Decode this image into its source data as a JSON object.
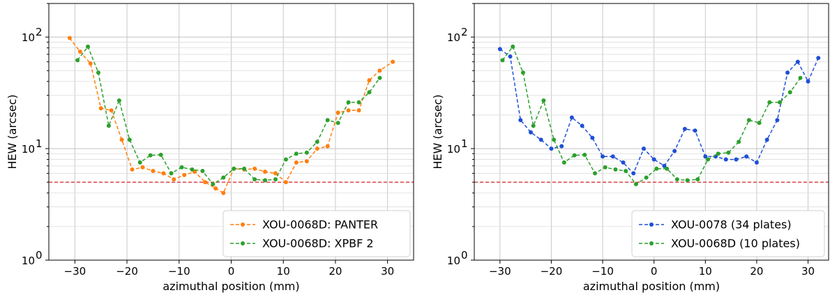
{
  "chart_data": [
    {
      "type": "line",
      "title": "",
      "xlabel": "azimuthal position (mm)",
      "ylabel": "HEW (arcsec)",
      "xlim": [
        -35,
        35
      ],
      "ylim": [
        1,
        200
      ],
      "yscale": "log",
      "xticks": [
        -30,
        -20,
        -10,
        0,
        10,
        20,
        30
      ],
      "xtick_labels": [
        "−30",
        "−20",
        "−10",
        "0",
        "10",
        "20",
        "30"
      ],
      "yticks": [
        1,
        10,
        100
      ],
      "ytick_labels": [
        "10",
        "10",
        "10"
      ],
      "ytick_exponents": [
        "0",
        "1",
        "2"
      ],
      "grid": true,
      "legend_position": "lower-right",
      "reference_line": {
        "y": 5,
        "color": "#d62728",
        "style": "dashed"
      },
      "series": [
        {
          "name": "XOU-0068D: PANTER",
          "color": "#ff7f0e",
          "x": [
            -31,
            -29,
            -27,
            -25,
            -23,
            -21,
            -19,
            -17,
            -15,
            -13,
            -11,
            -9,
            -7,
            -5,
            -3,
            -1.5,
            0.5,
            2.5,
            4.5,
            6.5,
            8.5,
            10.5,
            12.5,
            14.5,
            16.5,
            18.5,
            20.5,
            22.5,
            24.5,
            26.5,
            28.5,
            31
          ],
          "y": [
            98,
            74,
            58,
            23,
            22,
            12,
            6.5,
            6.8,
            6.3,
            6.0,
            5.3,
            5.8,
            6.2,
            5.0,
            4.4,
            4.0,
            6.6,
            6.5,
            6.6,
            6.2,
            6.0,
            5.0,
            7.5,
            7.7,
            10,
            10.5,
            21,
            22,
            22,
            41,
            50,
            60
          ]
        },
        {
          "name": "XOU-0068D: XPBF 2",
          "color": "#2ca02c",
          "x": [
            -29.5,
            -27.5,
            -25.5,
            -23.5,
            -21.5,
            -19.5,
            -17.5,
            -15.5,
            -13.5,
            -11.5,
            -9.5,
            -7.5,
            -5.5,
            -3.5,
            -1.5,
            0.5,
            2.5,
            4.5,
            6.5,
            8.5,
            10.5,
            12.5,
            14.5,
            16.5,
            18.5,
            20.5,
            22.5,
            24.5,
            26.5,
            28.5
          ],
          "y": [
            62,
            82,
            48,
            16,
            27,
            12,
            7.5,
            8.7,
            8.8,
            6.0,
            6.8,
            6.5,
            6.3,
            4.8,
            5.5,
            6.6,
            6.6,
            5.3,
            5.2,
            5.3,
            8.0,
            9.0,
            9.2,
            11.5,
            18,
            17,
            26,
            26,
            32,
            43
          ]
        }
      ]
    },
    {
      "type": "line",
      "title": "",
      "xlabel": "azimuthal position (mm)",
      "ylabel": "HEW (arcsec)",
      "xlim": [
        -35,
        34
      ],
      "ylim": [
        1,
        200
      ],
      "yscale": "log",
      "xticks": [
        -30,
        -20,
        -10,
        0,
        10,
        20,
        30
      ],
      "xtick_labels": [
        "−30",
        "−20",
        "−10",
        "0",
        "10",
        "20",
        "30"
      ],
      "yticks": [
        1,
        10,
        100
      ],
      "ytick_labels": [
        "10",
        "10",
        "10"
      ],
      "ytick_exponents": [
        "0",
        "1",
        "2"
      ],
      "grid": true,
      "legend_position": "lower-right",
      "reference_line": {
        "y": 5,
        "color": "#d62728",
        "style": "dashed"
      },
      "series": [
        {
          "name": "XOU-0078 (34 plates)",
          "color": "#1f4fd6",
          "x": [
            -30,
            -28,
            -26,
            -24,
            -22,
            -20,
            -18,
            -16,
            -14,
            -12,
            -10,
            -8,
            -6,
            -4,
            -2,
            0,
            2,
            4,
            6,
            8,
            10,
            12,
            14,
            16,
            18,
            20,
            22,
            24,
            26,
            28,
            30,
            32
          ],
          "y": [
            78,
            67,
            18,
            14,
            12,
            10,
            10.5,
            19,
            16,
            12.5,
            8.5,
            8.5,
            7.5,
            6.0,
            10,
            8.0,
            7.0,
            9.5,
            15,
            14.5,
            8.5,
            8.5,
            8.0,
            8.0,
            8.5,
            7.5,
            12,
            18,
            48,
            60,
            40,
            65
          ]
        },
        {
          "name": "XOU-0068D (10 plates)",
          "color": "#2ca02c",
          "x": [
            -29.5,
            -27.5,
            -25.5,
            -23.5,
            -21.5,
            -19.5,
            -17.5,
            -15.5,
            -13.5,
            -11.5,
            -9.5,
            -7.5,
            -5.5,
            -3.5,
            -1.5,
            0.5,
            2.5,
            4.5,
            6.5,
            8.5,
            10.5,
            12.5,
            14.5,
            16.5,
            18.5,
            20.5,
            22.5,
            24.5,
            26.5,
            28.5
          ],
          "y": [
            62,
            82,
            48,
            16,
            27,
            12,
            7.5,
            8.7,
            8.8,
            6.0,
            6.8,
            6.5,
            6.3,
            4.8,
            5.5,
            6.6,
            6.6,
            5.3,
            5.2,
            5.3,
            8.0,
            9.0,
            9.2,
            11.5,
            18,
            17,
            26,
            26,
            32,
            43
          ]
        }
      ]
    }
  ]
}
